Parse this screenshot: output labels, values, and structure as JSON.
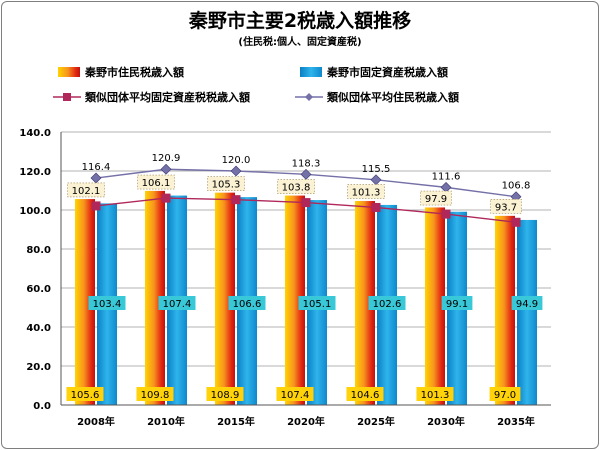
{
  "title": "秦野市主要2税歳入額推移",
  "subtitle": "(住民税:個人、固定資産税)",
  "colors": {
    "resident_bar": "#e5541b",
    "property_bar": "#17a0d8",
    "similar_property_line": "#b0285a",
    "similar_resident_line": "#7470a8"
  },
  "chart_data": {
    "type": "bar",
    "title": "秦野市主要2税歳入額推移",
    "subtitle": "(住民税:個人、固定資産税)",
    "categories": [
      "2008年",
      "2010年",
      "2015年",
      "2020年",
      "2025年",
      "2030年",
      "2035年"
    ],
    "ylim": [
      0,
      140
    ],
    "yticks": [
      "0.0",
      "20.0",
      "40.0",
      "60.0",
      "80.0",
      "100.0",
      "120.0",
      "140.0"
    ],
    "grid": true,
    "legend_position": "top",
    "series": [
      {
        "name": "秦野市住民税歳入額",
        "kind": "bar",
        "values": [
          105.6,
          109.8,
          108.9,
          107.4,
          104.6,
          101.3,
          97.0
        ],
        "labels": [
          "105.6",
          "109.8",
          "108.9",
          "107.4",
          "104.6",
          "101.3",
          "97.0"
        ]
      },
      {
        "name": "秦野市固定資産税歳入額",
        "kind": "bar",
        "values": [
          103.4,
          107.4,
          106.6,
          105.1,
          102.6,
          99.1,
          94.9
        ],
        "labels": [
          "103.4",
          "107.4",
          "106.6",
          "105.1",
          "102.6",
          "99.1",
          "94.9"
        ]
      },
      {
        "name": "類似団体平均固定資産税税歳入額",
        "kind": "line",
        "values": [
          102.1,
          106.1,
          105.3,
          103.8,
          101.3,
          97.9,
          93.7
        ],
        "labels": [
          "102.1",
          "106.1",
          "105.3",
          "103.8",
          "101.3",
          "97.9",
          "93.7"
        ]
      },
      {
        "name": "類似団体平均住民税歳入額",
        "kind": "line",
        "values": [
          116.4,
          120.9,
          120.0,
          118.3,
          115.5,
          111.6,
          106.8
        ],
        "labels": [
          "116.4",
          "120.9",
          "120.0",
          "118.3",
          "115.5",
          "111.6",
          "106.8"
        ]
      }
    ]
  }
}
